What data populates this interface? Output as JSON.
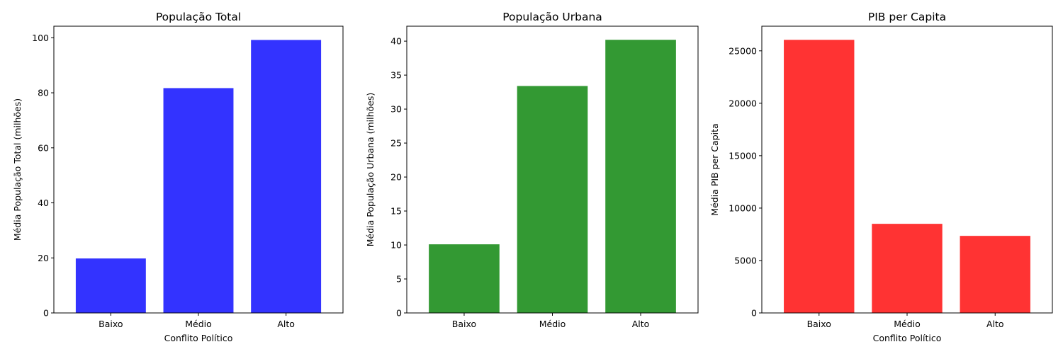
{
  "chart_data": [
    {
      "type": "bar",
      "title": "População Total",
      "xlabel": "Conflito Político",
      "ylabel": "Média População Total (milhões)",
      "categories": [
        "Baixo",
        "Médio",
        "Alto"
      ],
      "values": [
        19.8,
        81.7,
        99.2
      ],
      "color": "#3333ff",
      "ylim": [
        0,
        104.2
      ],
      "yticks": [
        0,
        20,
        40,
        60,
        80,
        100
      ],
      "grid": false
    },
    {
      "type": "bar",
      "title": "População Urbana",
      "xlabel": "",
      "ylabel": "Média População Urbana (milhões)",
      "categories": [
        "Baixo",
        "Médio",
        "Alto"
      ],
      "values": [
        10.1,
        33.4,
        40.2
      ],
      "color": "#339933",
      "ylim": [
        0,
        42.2
      ],
      "yticks": [
        0,
        5,
        10,
        15,
        20,
        25,
        30,
        35,
        40
      ],
      "grid": false
    },
    {
      "type": "bar",
      "title": "PIB per Capita",
      "xlabel": "Conflito Político",
      "ylabel": "Média PIB per Capita",
      "categories": [
        "Baixo",
        "Médio",
        "Alto"
      ],
      "values": [
        26050,
        8500,
        7350
      ],
      "color": "#ff3333",
      "ylim": [
        0,
        27350
      ],
      "yticks": [
        0,
        5000,
        10000,
        15000,
        20000,
        25000
      ],
      "grid": false
    }
  ]
}
